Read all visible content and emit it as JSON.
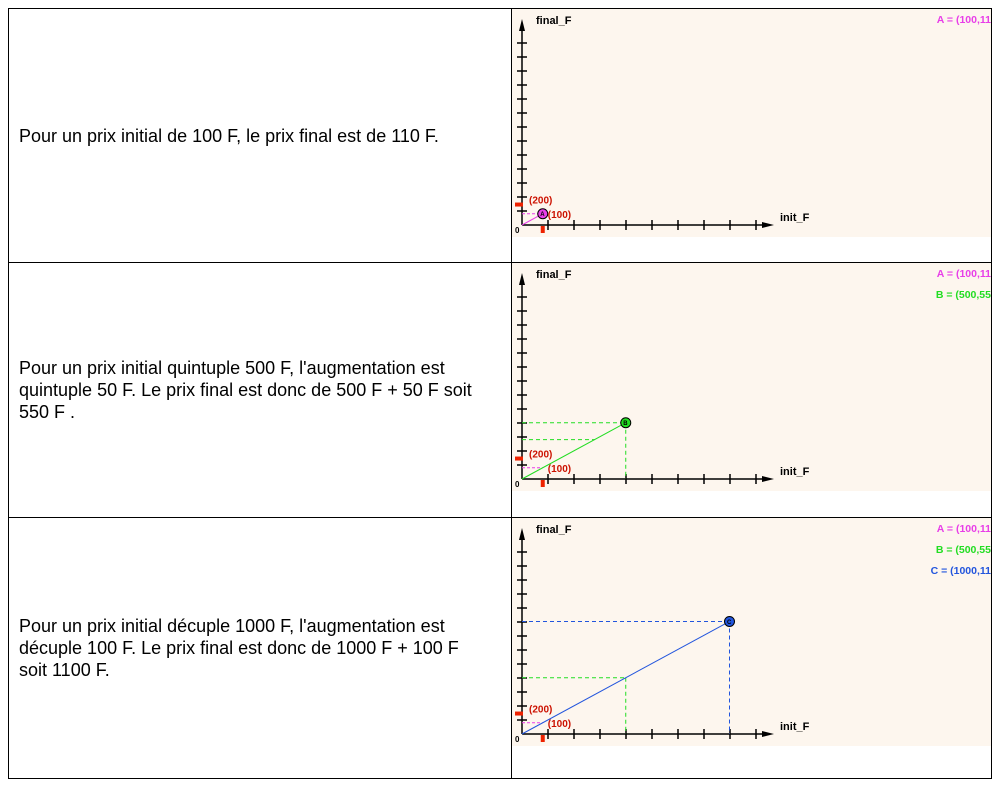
{
  "rows": [
    {
      "text": "Pour un prix initial de 100 F, le prix final est de 110 F."
    },
    {
      "text": "Pour un prix initial quintuple 500 F, l'augmentation est quintuple 50 F. Le prix final est donc de 500 F + 50 F soit 550 F ."
    },
    {
      "text": "Pour un prix initial décuple 1000 F, l'augmentation est décuple 100 F. Le prix final est donc de 1000 F + 100 F soit 1100 F."
    }
  ],
  "graph": {
    "y_label": "final_F",
    "x_label": "init_F",
    "origin_label": "0",
    "y_slider_label": "(200)",
    "x_slider_label": "(100)",
    "background": "#fdf6ee",
    "points": [
      {
        "name": "A",
        "legend": "A = (100,11",
        "color": "#e83ee8",
        "x": 100,
        "y": 110
      },
      {
        "name": "B",
        "legend": "B = (500,55",
        "color": "#22dd22",
        "x": 500,
        "y": 550
      },
      {
        "name": "C",
        "legend": "C = (1000,11",
        "color": "#2255dd",
        "x": 1000,
        "y": 1100
      }
    ]
  }
}
